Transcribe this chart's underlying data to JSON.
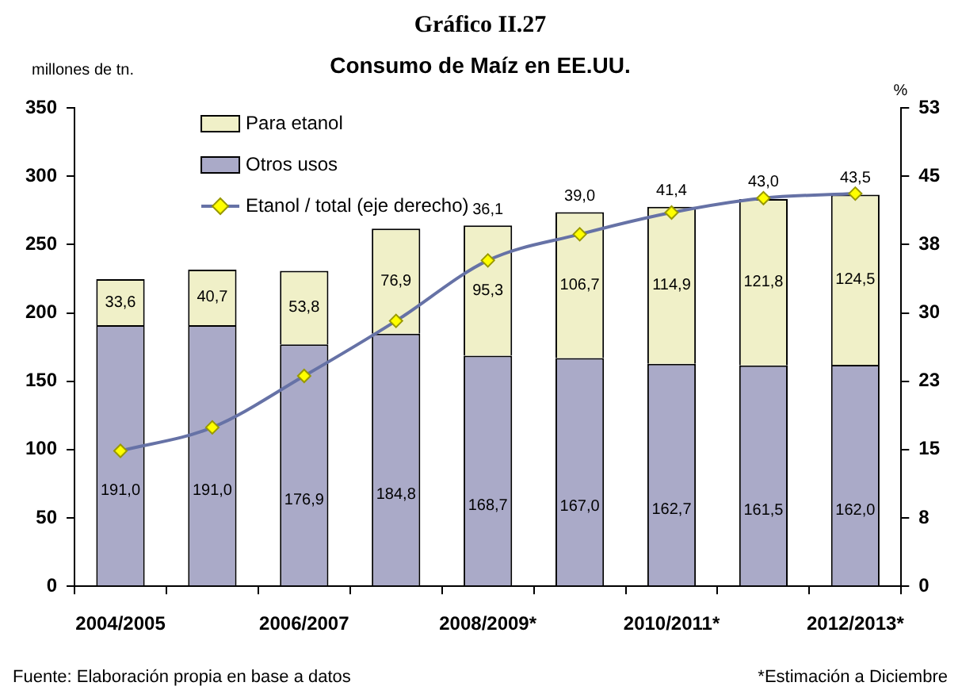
{
  "chart_data": {
    "type": "bar",
    "title": "Gráfico II.27",
    "subtitle": "Consumo de Maíz en EE.UU.",
    "ylabel": "millones de tn.",
    "y2label": "%",
    "categories": [
      "2004/2005",
      null,
      "2006/2007",
      null,
      "2008/2009*",
      null,
      "2010/2011*",
      null,
      "2012/2013*"
    ],
    "stacked": true,
    "legend": "top left",
    "grid": false,
    "data_labels": true,
    "series": [
      {
        "name": "Otros usos",
        "color": "#aaaac8",
        "values": [
          191.0,
          191.0,
          176.9,
          184.8,
          168.7,
          167.0,
          162.7,
          161.5,
          162.0
        ],
        "value_labels": [
          "191,0",
          "191,0",
          "176,9",
          "184,8",
          "168,7",
          "167,0",
          "162,7",
          "161,5",
          "162,0"
        ]
      },
      {
        "name": "Para etanol",
        "color": "#f0f0c8",
        "values": [
          33.6,
          40.7,
          53.8,
          76.9,
          95.3,
          106.7,
          114.9,
          121.8,
          124.5
        ],
        "value_labels": [
          "33,6",
          "40,7",
          "53,8",
          "76,9",
          "95,3",
          "106,7",
          "114,9",
          "121,8",
          "124,5"
        ]
      },
      {
        "name": "Etanol / total (eje derecho)",
        "type": "line",
        "axis": "y2",
        "color": "#6672a6",
        "marker": "diamond",
        "line_style": "solid",
        "values": [
          15.0,
          17.6,
          23.3,
          29.4,
          36.1,
          39.0,
          41.4,
          43.0,
          43.5
        ],
        "value_labels": [
          null,
          null,
          null,
          null,
          "36,1",
          "39,0",
          "41,4",
          "43,0",
          "43,5"
        ]
      }
    ],
    "ylim": [
      0,
      350
    ],
    "yticks": [
      0,
      50,
      100,
      150,
      200,
      250,
      300,
      350
    ],
    "y2lim": [
      0,
      53
    ],
    "y2ticks": [
      0,
      {
        "value": 7.571,
        "label": "8"
      },
      {
        "value": 15.143,
        "label": "15"
      },
      {
        "value": 22.714,
        "label": "23"
      },
      {
        "value": 30.286,
        "label": "30"
      },
      {
        "value": 37.857,
        "label": "38"
      },
      {
        "value": 45.429,
        "label": "45"
      },
      53
    ],
    "annotations": [
      "Fuente: Elaboración propia en base a datos",
      "*Estimación a Diciembre"
    ]
  }
}
